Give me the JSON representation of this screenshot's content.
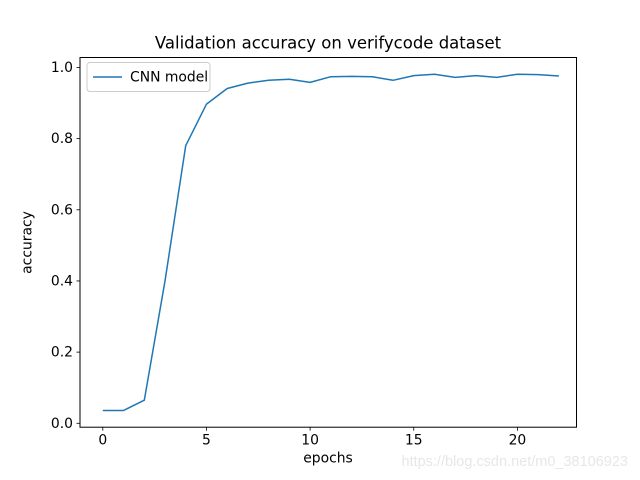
{
  "chart_data": {
    "type": "line",
    "title": "Validation accuracy on verifycode dataset",
    "xlabel": "epochs",
    "ylabel": "accuracy",
    "x": [
      0,
      1,
      2,
      3,
      4,
      5,
      6,
      7,
      8,
      9,
      10,
      11,
      12,
      13,
      14,
      15,
      16,
      17,
      18,
      19,
      20,
      21,
      22
    ],
    "series": [
      {
        "name": "CNN model",
        "color": "#1f77b4",
        "values": [
          0.036,
          0.036,
          0.065,
          0.4,
          0.78,
          0.897,
          0.941,
          0.956,
          0.964,
          0.967,
          0.958,
          0.974,
          0.975,
          0.974,
          0.964,
          0.977,
          0.981,
          0.972,
          0.977,
          0.972,
          0.981,
          0.98,
          0.976
        ]
      }
    ],
    "xlim": [
      -1.1,
      22.85
    ],
    "ylim": [
      -0.011,
      1.028
    ],
    "xticks": [
      0,
      5,
      10,
      15,
      20
    ],
    "xtick_labels": [
      "0",
      "5",
      "10",
      "15",
      "20"
    ],
    "yticks": [
      0.0,
      0.2,
      0.4,
      0.6,
      0.8,
      1.0
    ],
    "ytick_labels": [
      "0.0",
      "0.2",
      "0.4",
      "0.6",
      "0.8",
      "1.0"
    ],
    "grid": false,
    "legend": {
      "position": "upper left",
      "label": "CNN model"
    }
  },
  "watermark": {
    "text": "https://blog.csdn.net/m0_38106923"
  },
  "colors": {
    "line": "#1f77b4",
    "text": "#000000",
    "spine": "#000000",
    "legend_border": "#cccccc",
    "legend_background": "#ffffff",
    "watermark": "#e7e7e7",
    "background": "#ffffff"
  }
}
